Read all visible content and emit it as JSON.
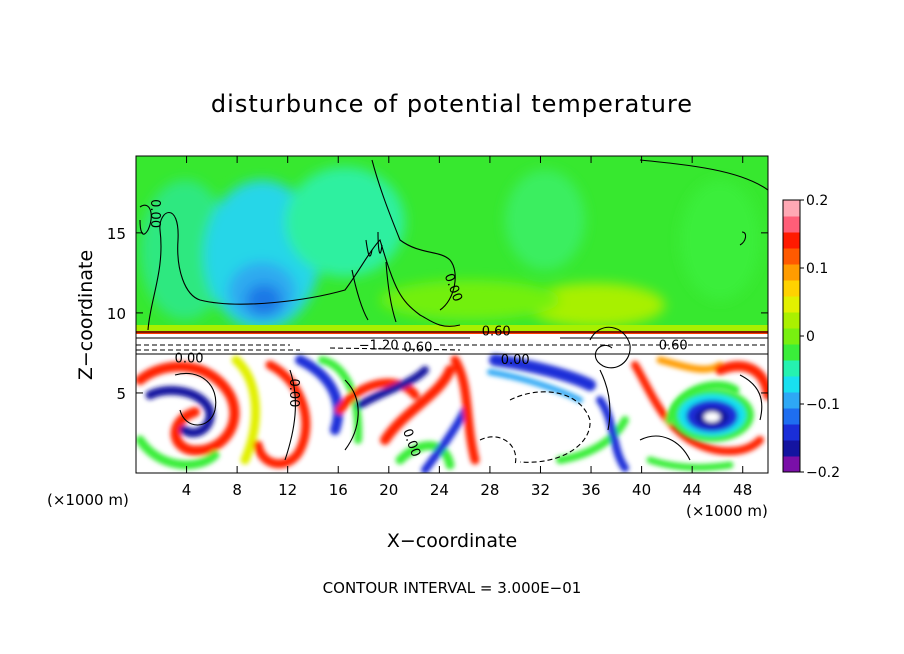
{
  "chart_data": {
    "type": "heatmap",
    "title": "disturbunce of potential temperature",
    "xlabel": "X−coordinate",
    "ylabel": "Z−coordinate",
    "x_unit_left": "(×1000 m)",
    "x_unit_right": "(×1000 m)",
    "footer": "CONTOUR INTERVAL = 3.000E−01",
    "xlim": [
      0,
      50
    ],
    "ylim": [
      0,
      19.8
    ],
    "x_ticks": [
      4,
      8,
      12,
      16,
      20,
      24,
      28,
      32,
      36,
      40,
      44,
      48
    ],
    "x_tick_labels": [
      "4",
      "8",
      "12",
      "16",
      "20",
      "24",
      "28",
      "32",
      "36",
      "40",
      "44",
      "48"
    ],
    "y_ticks": [
      5,
      10,
      15
    ],
    "y_tick_labels": [
      "5",
      "10",
      "15"
    ],
    "colorbar": {
      "range": [
        -0.2,
        0.2
      ],
      "ticks": [
        0.2,
        0.1,
        0,
        -0.1,
        -0.2
      ],
      "tick_labels": [
        "0.2",
        "0.1",
        "0",
        "−0.1",
        "−0.2"
      ],
      "colors": [
        "#7a0fa8",
        "#1414a0",
        "#1a2ed8",
        "#1e6ef0",
        "#2ea8f5",
        "#18e0f0",
        "#25f2b0",
        "#3aee3a",
        "#78f010",
        "#aaf000",
        "#e2f000",
        "#ffd200",
        "#ff9c00",
        "#ff5a00",
        "#ff1a00",
        "#ff5e78",
        "#ffa8b4"
      ]
    },
    "contour_labels": [
      {
        "text": "0.00",
        "x": 1.2,
        "z": 16.2,
        "rotate": 90
      },
      {
        "text": "0.00",
        "x": 24.8,
        "z": 11.5,
        "rotate": 70
      },
      {
        "text": "0.60",
        "x": 28.5,
        "z": 8.6,
        "rotate": 0
      },
      {
        "text": "−1.20",
        "x": 19.2,
        "z": 7.7,
        "rotate": 0
      },
      {
        "text": "0.60",
        "x": 22.3,
        "z": 7.6,
        "rotate": 0
      },
      {
        "text": "0.60",
        "x": 42.5,
        "z": 7.7,
        "rotate": 0
      },
      {
        "text": "0.00",
        "x": 4.2,
        "z": 6.9,
        "rotate": 0
      },
      {
        "text": "0.00",
        "x": 30.0,
        "z": 6.8,
        "rotate": 0
      },
      {
        "text": "0.00",
        "x": 12.2,
        "z": 5.0,
        "rotate": 90
      },
      {
        "text": "0.00",
        "x": 21.5,
        "z": 1.8,
        "rotate": 70
      }
    ]
  }
}
